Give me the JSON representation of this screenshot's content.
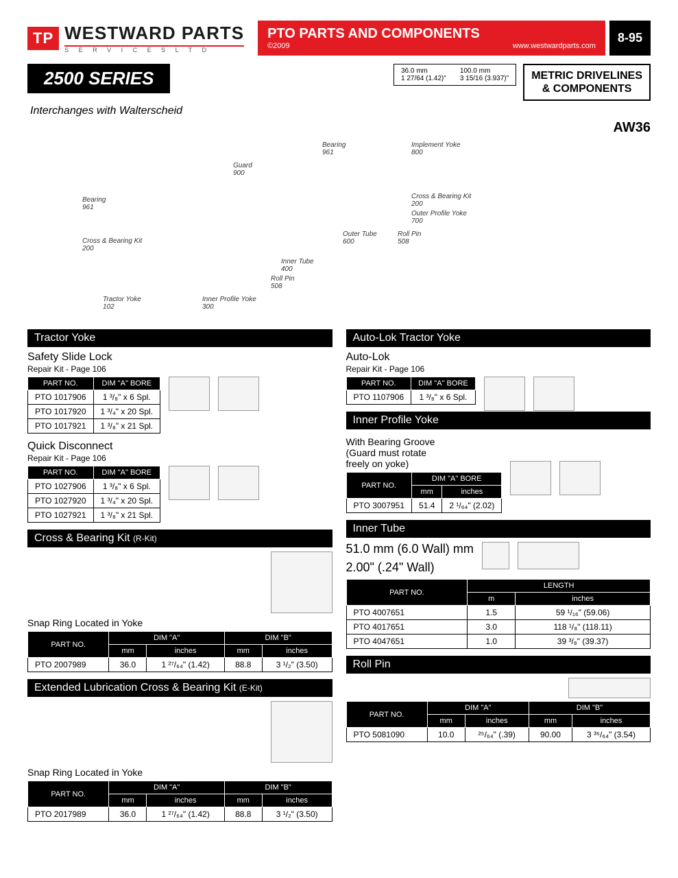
{
  "header": {
    "logo_badge": "TP",
    "brand": "WESTWARD PARTS",
    "brand_sub": "S E R V I C E S   L T D",
    "title": "PTO PARTS AND COMPONENTS",
    "copyright": "©2009",
    "url": "www.westwardparts.com",
    "page_no": "8-95"
  },
  "series": {
    "badge": "2500 SERIES",
    "interchange": "Interchanges with Walterscheid",
    "dim1": "36.0 mm",
    "dim1b": "1 27/64 (1.42)\"",
    "dim2": "100.0 mm",
    "dim2b": "3 15/16 (3.937)\"",
    "metric_l1": "METRIC DRIVELINES",
    "metric_l2": "& COMPONENTS",
    "aw": "AW36"
  },
  "diagram_labels": {
    "bearing1": "Bearing",
    "bearing1_no": "961",
    "implement": "Implement Yoke",
    "implement_no": "800",
    "guard": "Guard",
    "guard_no": "900",
    "bearing2": "Bearing",
    "bearing2_no": "961",
    "cross1": "Cross & Bearing Kit",
    "cross1_no": "200",
    "cross2": "Cross & Bearing Kit",
    "cross2_no": "200",
    "outer_yoke": "Outer Profile Yoke",
    "outer_yoke_no": "700",
    "outer_tube": "Outer Tube",
    "outer_tube_no": "600",
    "roll1": "Roll Pin",
    "roll1_no": "508",
    "roll2": "Roll Pin",
    "roll2_no": "508",
    "inner_tube": "Inner Tube",
    "inner_tube_no": "400",
    "tractor": "Tractor Yoke",
    "tractor_no": "102",
    "inner_yoke": "Inner Profile Yoke",
    "inner_yoke_no": "300"
  },
  "sections": {
    "tractor_yoke": {
      "bar": "Tractor Yoke",
      "sub1": "Safety Slide Lock",
      "note1": "Repair Kit - Page 106",
      "h1": "PART NO.",
      "h2": "DIM \"A\" BORE",
      "rows1": [
        [
          "PTO 1017906",
          "1 ³/₈\" x 6 Spl."
        ],
        [
          "PTO 1017920",
          "1 ³/₄\" x 20 Spl."
        ],
        [
          "PTO 1017921",
          "1 ³/₈\" x 21 Spl."
        ]
      ],
      "sub2": "Quick Disconnect",
      "note2": "Repair Kit - Page 106",
      "rows2": [
        [
          "PTO 1027906",
          "1 ³/₈\" x 6 Spl."
        ],
        [
          "PTO 1027920",
          "1 ³/₄\" x 20 Spl."
        ],
        [
          "PTO 1027921",
          "1 ³/₈\" x 21 Spl."
        ]
      ]
    },
    "auto_lok": {
      "bar": "Auto-Lok Tractor Yoke",
      "sub": "Auto-Lok",
      "note": "Repair Kit - Page 106",
      "h1": "PART NO.",
      "h2": "DIM \"A\" BORE",
      "rows": [
        [
          "PTO 1107906",
          "1 ³/₈\" x 6 Spl."
        ]
      ]
    },
    "inner_profile": {
      "bar": "Inner Profile Yoke",
      "note_l1": "With Bearing Groove",
      "note_l2": "(Guard must rotate",
      "note_l3": "freely on yoke)",
      "h1": "PART NO.",
      "h2": "DIM \"A\" BORE",
      "h2a": "mm",
      "h2b": "inches",
      "rows": [
        [
          "PTO 3007951",
          "51.4",
          "2 ¹/₆₄\" (2.02)"
        ]
      ]
    },
    "cross_kit": {
      "bar": "Cross & Bearing Kit",
      "bar_sm": "(R-Kit)",
      "note": "Snap Ring Located in Yoke",
      "h1": "PART NO.",
      "h2": "DIM \"A\"",
      "h3": "DIM \"B\"",
      "sa": "mm",
      "sb": "inches",
      "rows": [
        [
          "PTO 2007989",
          "36.0",
          "1 ²⁷/₆₄\" (1.42)",
          "88.8",
          "3 ¹/₂\" (3.50)"
        ]
      ]
    },
    "inner_tube": {
      "bar": "Inner Tube",
      "dim_l1": "51.0 mm (6.0 Wall) mm",
      "dim_l2": "2.00\" (.24\" Wall)",
      "h1": "PART NO.",
      "h2": "LENGTH",
      "sa": "m",
      "sb": "inches",
      "rows": [
        [
          "PTO 4007651",
          "1.5",
          "59 ¹/₁₆\" (59.06)"
        ],
        [
          "PTO 4017651",
          "3.0",
          "118 ¹/₈\" (118.11)"
        ],
        [
          "PTO 4047651",
          "1.0",
          "39 ³/₈\" (39.37)"
        ]
      ]
    },
    "ext_kit": {
      "bar": "Extended Lubrication Cross & Bearing Kit",
      "bar_sm": "(E-Kit)",
      "note": "Snap Ring Located in Yoke",
      "h1": "PART NO.",
      "h2": "DIM \"A\"",
      "h3": "DIM \"B\"",
      "sa": "mm",
      "sb": "inches",
      "rows": [
        [
          "PTO 2017989",
          "36.0",
          "1 ²⁷/₆₄\" (1.42)",
          "88.8",
          "3 ¹/₂\" (3.50)"
        ]
      ]
    },
    "roll_pin": {
      "bar": "Roll Pin",
      "h1": "PART NO.",
      "h2": "DIM \"A\"",
      "h3": "DIM \"B\"",
      "sa": "mm",
      "sb": "inches",
      "rows": [
        [
          "PTO 5081090",
          "10.0",
          "²⁵/₆₄\" (.39)",
          "90.00",
          "3 ³⁵/₆₄\" (3.54)"
        ]
      ]
    }
  }
}
